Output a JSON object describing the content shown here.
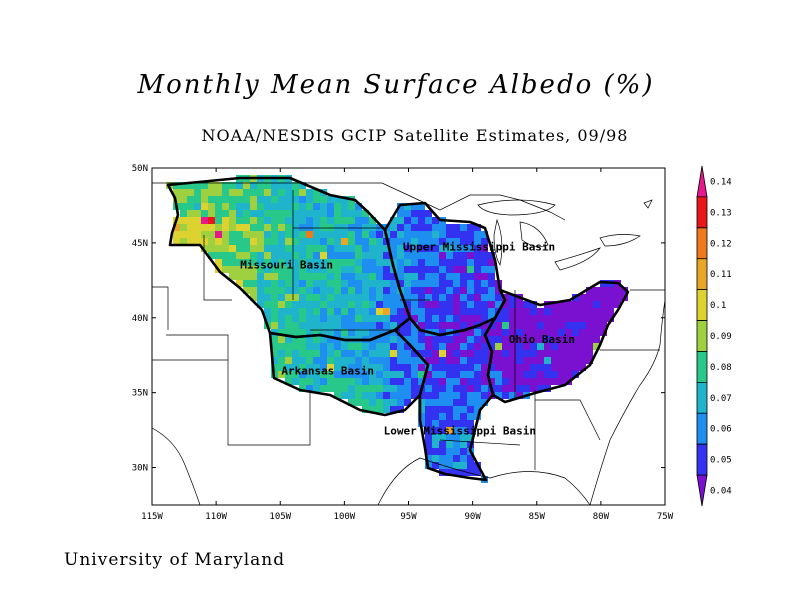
{
  "title": "Monthly Mean Surface Albedo (%)",
  "subtitle": "NOAA/NESDIS GCIP Satellite Estimates, 09/98",
  "footer": "University of Maryland",
  "map": {
    "lon_range": [
      -115,
      -75
    ],
    "lat_range": [
      27.5,
      50
    ],
    "lat_ticks": [
      {
        "value": 50,
        "label": "50N"
      },
      {
        "value": 45,
        "label": "45N"
      },
      {
        "value": 40,
        "label": "40N"
      },
      {
        "value": 35,
        "label": "35N"
      },
      {
        "value": 30,
        "label": "30N"
      }
    ],
    "lon_ticks": [
      {
        "value": -115,
        "label": "115W"
      },
      {
        "value": -110,
        "label": "110W"
      },
      {
        "value": -105,
        "label": "105W"
      },
      {
        "value": -100,
        "label": "100W"
      },
      {
        "value": -95,
        "label": "95W"
      },
      {
        "value": -90,
        "label": "90W"
      },
      {
        "value": -85,
        "label": "85W"
      },
      {
        "value": -80,
        "label": "80W"
      },
      {
        "value": -75,
        "label": "75W"
      }
    ],
    "basin_labels": [
      {
        "name": "Missouri Basin",
        "lon": -104.5,
        "lat": 43.3
      },
      {
        "name": "Upper Mississippi Basin",
        "lon": -89.5,
        "lat": 44.5
      },
      {
        "name": "Ohio Basin",
        "lon": -84.6,
        "lat": 38.3
      },
      {
        "name": "Arkansas Basin",
        "lon": -101.3,
        "lat": 36.2
      },
      {
        "name": "Lower Mississippi Basin",
        "lon": -91,
        "lat": 32.2
      }
    ]
  },
  "colorbar": {
    "min": 0.035,
    "max": 0.145,
    "levels": [
      {
        "label": "0.14",
        "color": "#e6188c"
      },
      {
        "label": "0.13",
        "color": "#e81818"
      },
      {
        "label": "0.12",
        "color": "#f07a1a"
      },
      {
        "label": "0.11",
        "color": "#e8a628"
      },
      {
        "label": "0.1",
        "color": "#dcd230"
      },
      {
        "label": "0.09",
        "color": "#9ed040"
      },
      {
        "label": "0.08",
        "color": "#28c88a"
      },
      {
        "label": "0.07",
        "color": "#1fb4cc"
      },
      {
        "label": "0.06",
        "color": "#1e8ef0"
      },
      {
        "label": "0.05",
        "color": "#3232f0"
      },
      {
        "label": "0.04",
        "color": "#7a10d0"
      }
    ]
  }
}
